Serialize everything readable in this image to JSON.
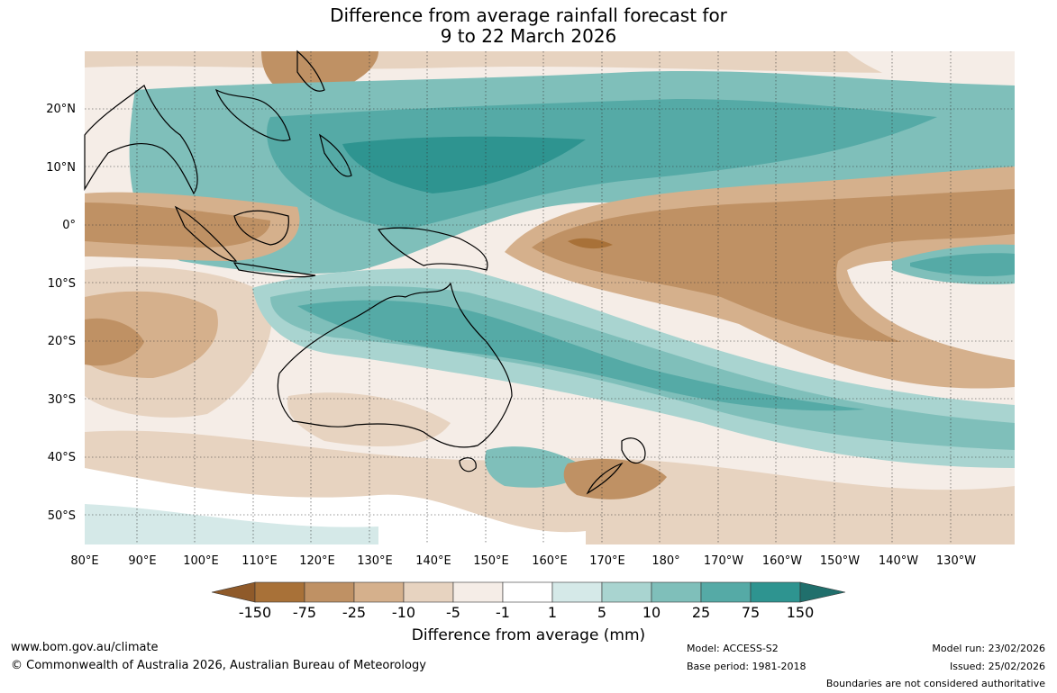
{
  "title_line1": "Difference from average rainfall forecast for",
  "title_line2": "9 to 22 March 2026",
  "lon_labels": [
    "80°E",
    "90°E",
    "100°E",
    "110°E",
    "120°E",
    "130°E",
    "140°E",
    "150°E",
    "160°E",
    "170°E",
    "180°",
    "170°W",
    "160°W",
    "150°W",
    "140°W",
    "130°W"
  ],
  "lat_labels": [
    "20°N",
    "10°N",
    "0°",
    "10°S",
    "20°S",
    "30°S",
    "40°S",
    "50°S"
  ],
  "colorbar": {
    "title": "Difference from average (mm)",
    "labels": [
      "-150",
      "-75",
      "-25",
      "-10",
      "-5",
      "-1",
      "1",
      "5",
      "10",
      "25",
      "75",
      "150"
    ],
    "colors": [
      "#8f5a2a",
      "#a87138",
      "#bf9164",
      "#d5b08c",
      "#e7d3c0",
      "#f5ede7",
      "#ffffff",
      "#d5e9e8",
      "#a9d4d0",
      "#7fbfba",
      "#55aaa6",
      "#2e9490",
      "#206f6c"
    ]
  },
  "footer": {
    "url": "www.bom.gov.au/climate",
    "copyright": "© Commonwealth of Australia 2026, Australian Bureau of Meteorology",
    "model": "Model: ACCESS-S2",
    "base_period": "Base period: 1981-2018",
    "model_run": "Model run: 23/02/2026",
    "issued": "Issued: 25/02/2026",
    "disclaimer": "Boundaries are not considered authoritative"
  }
}
